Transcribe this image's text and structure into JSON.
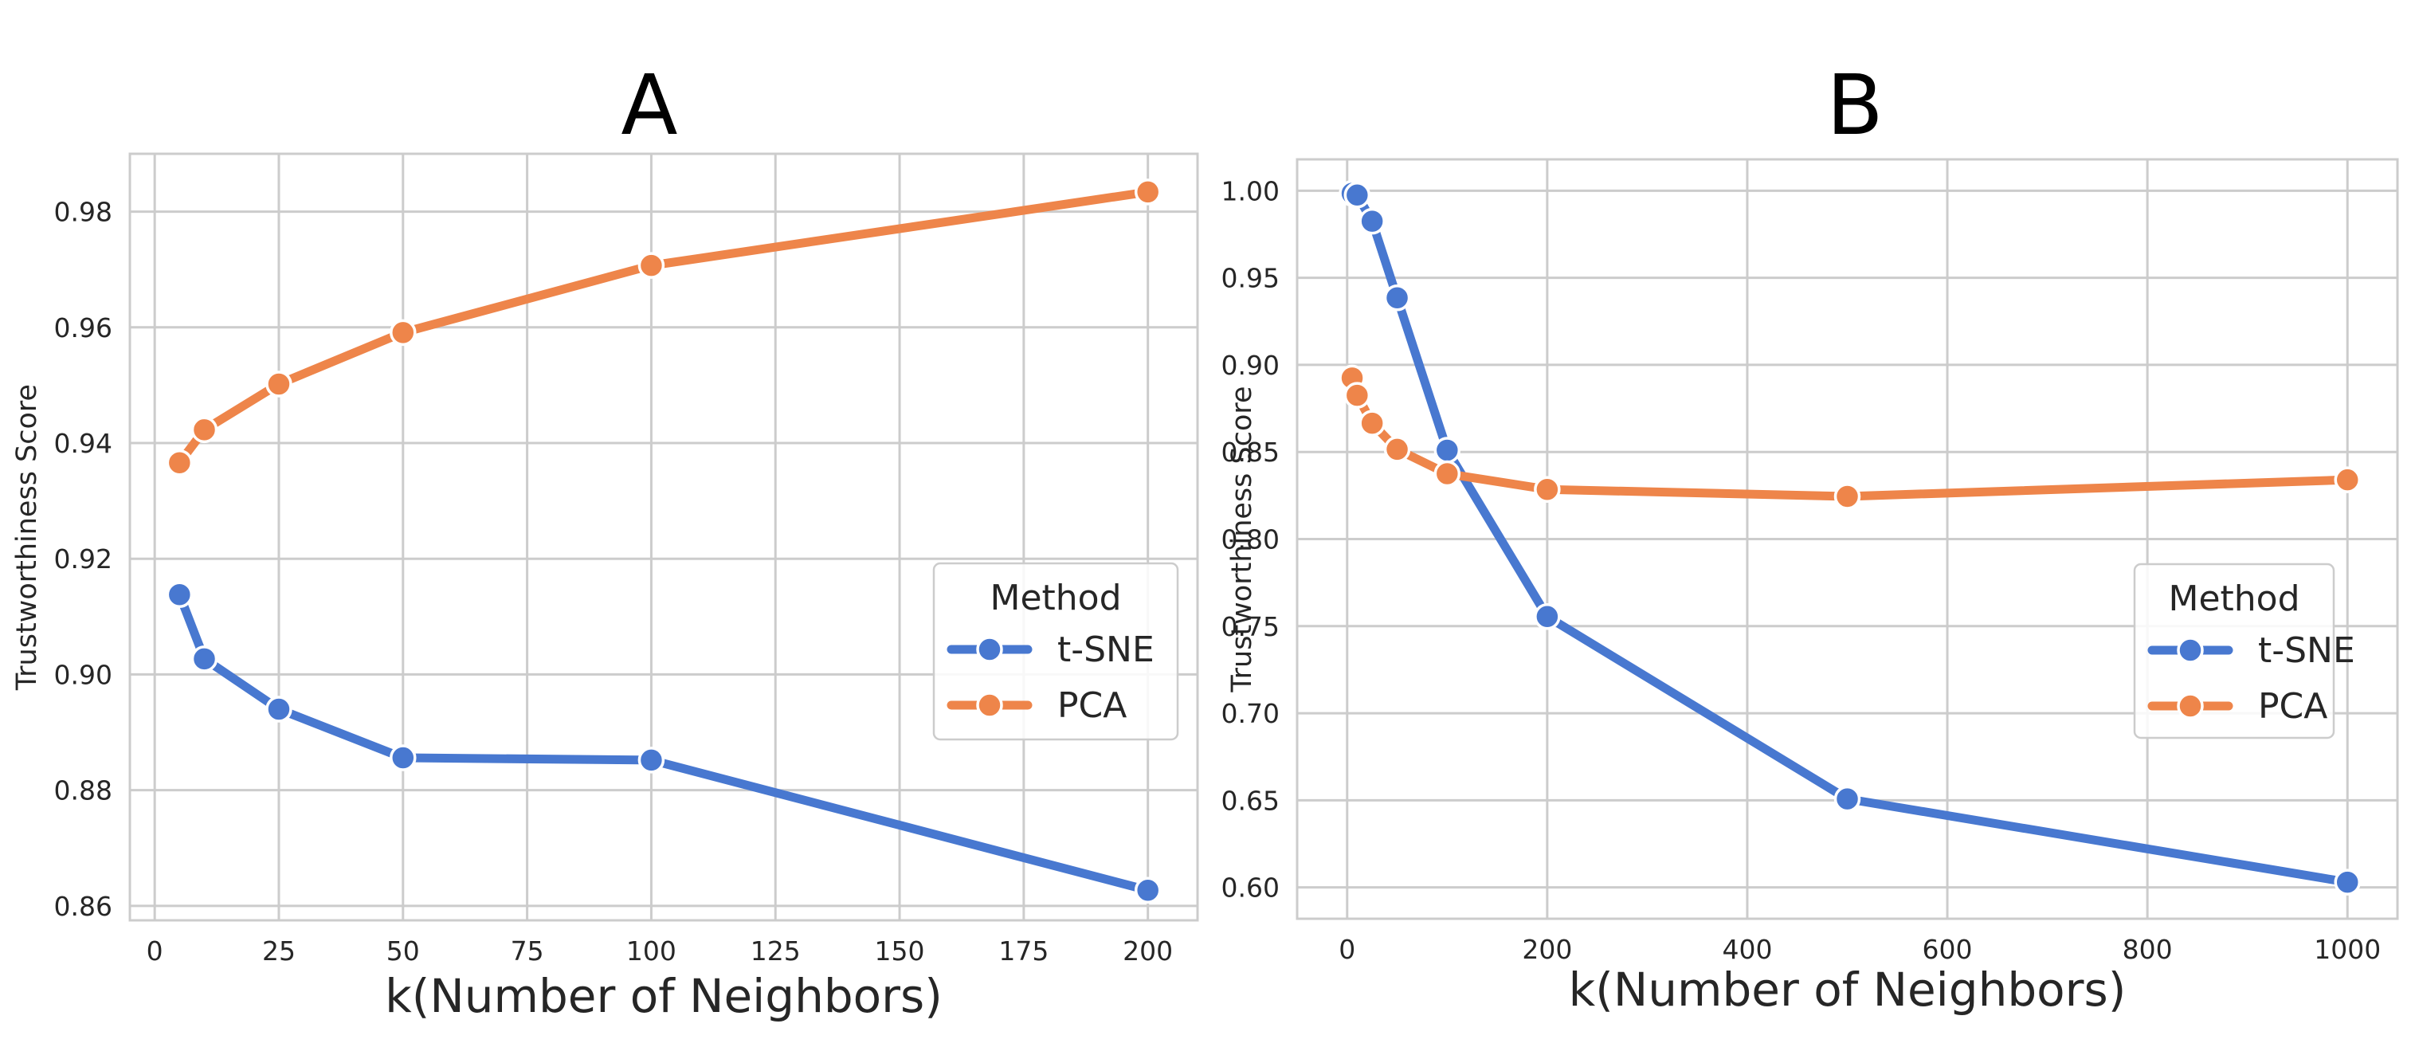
{
  "colors": {
    "tsne": "#4878d0",
    "pca": "#ee854a",
    "grid": "#cccccc",
    "text": "#262626"
  },
  "chart_data": [
    {
      "type": "line",
      "title": "A",
      "xlabel": "k(Number of Neighbors)",
      "ylabel": "Trustworthiness Score",
      "xlim": [
        -5,
        210
      ],
      "ylim": [
        0.8575,
        0.99
      ],
      "xticks": [
        0,
        25,
        50,
        75,
        100,
        125,
        150,
        175,
        200
      ],
      "yticks": [
        0.86,
        0.88,
        0.9,
        0.92,
        0.94,
        0.96,
        0.98
      ],
      "ytick_decimals": 2,
      "grid": true,
      "legend": {
        "title": "Method",
        "placement": "center-right"
      },
      "series": [
        {
          "name": "t-SNE",
          "color": "#4878d0",
          "x": [
            5,
            10,
            25,
            50,
            100,
            200
          ],
          "y": [
            0.9138,
            0.9027,
            0.894,
            0.8856,
            0.8852,
            0.8627
          ]
        },
        {
          "name": "PCA",
          "color": "#ee854a",
          "x": [
            5,
            10,
            25,
            50,
            100,
            200
          ],
          "y": [
            0.9366,
            0.9423,
            0.9502,
            0.9591,
            0.9707,
            0.9834
          ]
        }
      ]
    },
    {
      "type": "line",
      "title": "B",
      "xlabel": "k(Number of Neighbors)",
      "ylabel": "Trustworthiness Score",
      "xlim": [
        -50,
        1050
      ],
      "ylim": [
        0.582,
        1.018
      ],
      "xticks": [
        0,
        200,
        400,
        600,
        800,
        1000
      ],
      "yticks": [
        0.6,
        0.65,
        0.7,
        0.75,
        0.8,
        0.85,
        0.9,
        0.95,
        1.0
      ],
      "ytick_decimals": 2,
      "grid": true,
      "legend": {
        "title": "Method",
        "placement": "center-right"
      },
      "series": [
        {
          "name": "t-SNE",
          "color": "#4878d0",
          "x": [
            5,
            10,
            25,
            50,
            100,
            200,
            500,
            1000
          ],
          "y": [
            0.9985,
            0.9975,
            0.9825,
            0.9385,
            0.851,
            0.7555,
            0.6508,
            0.603
          ]
        },
        {
          "name": "PCA",
          "color": "#ee854a",
          "x": [
            5,
            10,
            25,
            50,
            100,
            200,
            500,
            1000
          ],
          "y": [
            0.8925,
            0.8825,
            0.8665,
            0.8515,
            0.8375,
            0.8285,
            0.8245,
            0.834
          ]
        }
      ]
    }
  ]
}
